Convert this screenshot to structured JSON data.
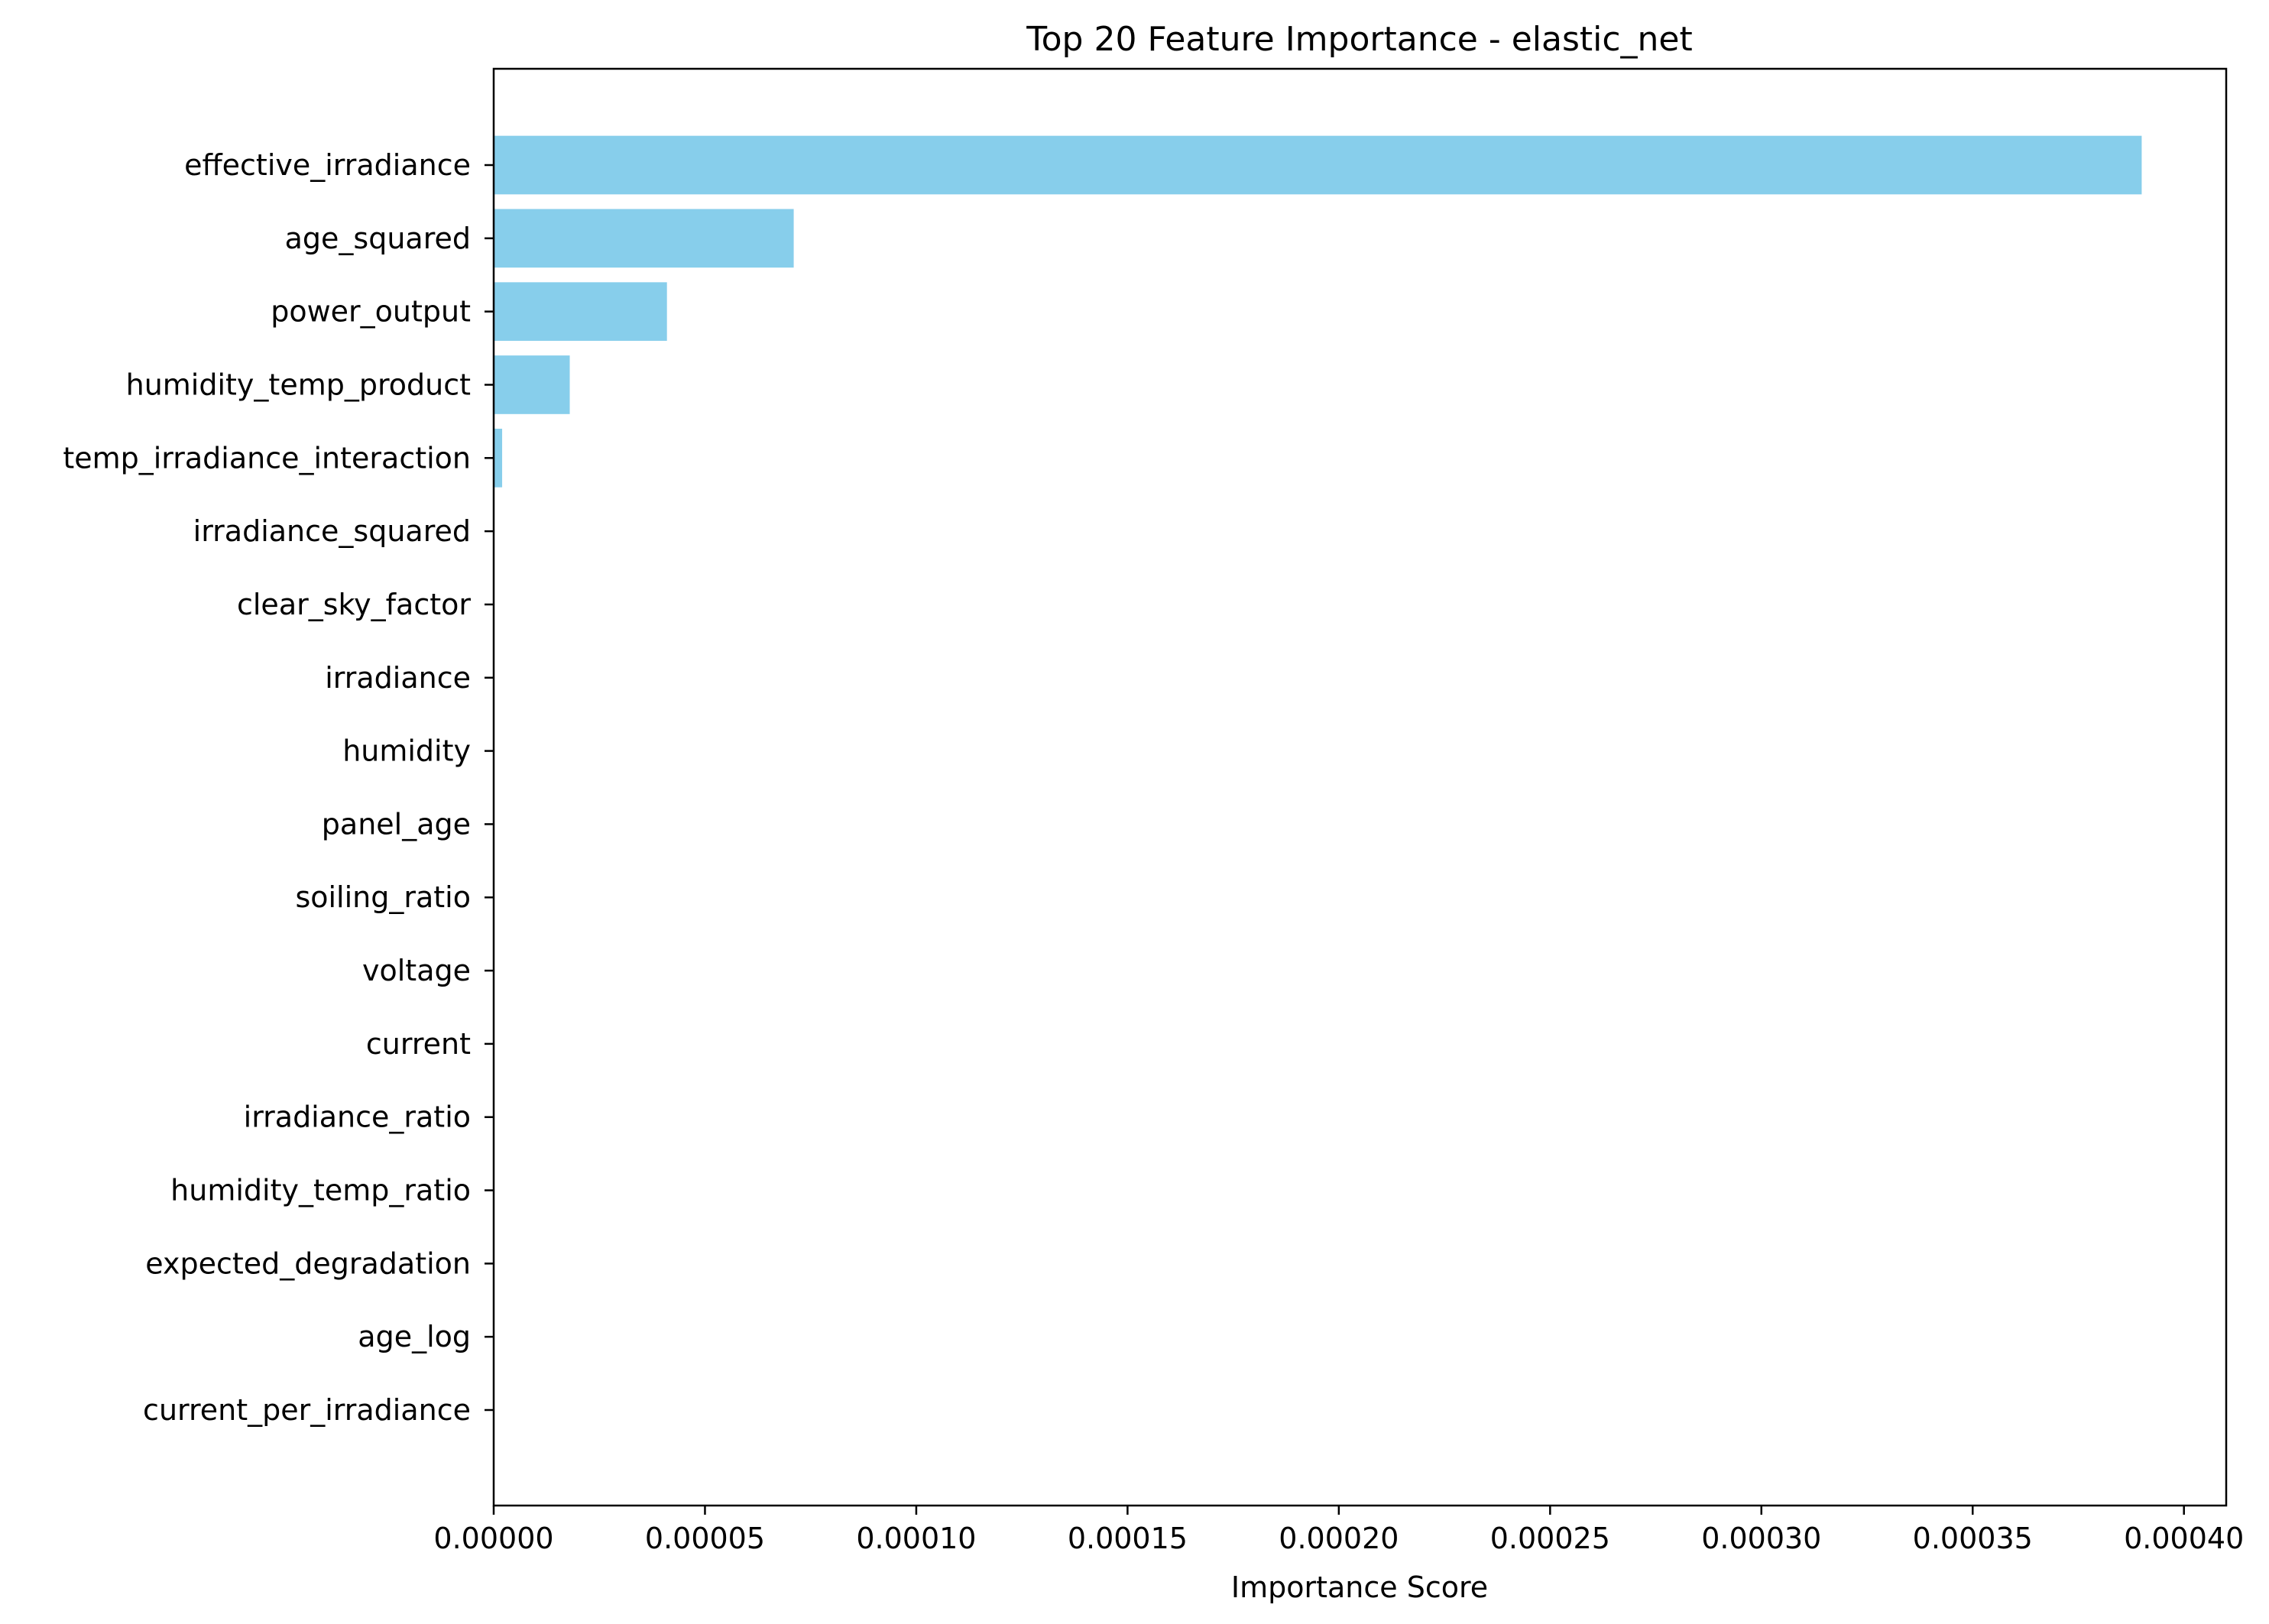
{
  "chart_data": {
    "type": "bar",
    "orientation": "horizontal",
    "title": "Top 20 Feature Importance - elastic_net",
    "xlabel": "Importance Score",
    "ylabel": "",
    "xlim": [
      0,
      0.00041
    ],
    "xticks": [
      "0.00000",
      "0.00005",
      "0.00010",
      "0.00015",
      "0.00020",
      "0.00025",
      "0.00030",
      "0.00035",
      "0.00040"
    ],
    "xtick_values": [
      0,
      5e-05,
      0.0001,
      0.00015,
      0.0002,
      0.00025,
      0.0003,
      0.00035,
      0.0004
    ],
    "grid": false,
    "bar_color": "#87ceeb",
    "categories": [
      "effective_irradiance",
      "age_squared",
      "power_output",
      "humidity_temp_product",
      "temp_irradiance_interaction",
      "irradiance_squared",
      "clear_sky_factor",
      "irradiance",
      "humidity",
      "panel_age",
      "soiling_ratio",
      "voltage",
      "current",
      "irradiance_ratio",
      "humidity_temp_ratio",
      "expected_degradation",
      "age_log",
      "current_per_irradiance"
    ],
    "values": [
      0.00039,
      7.1e-05,
      4.1e-05,
      1.8e-05,
      2e-06,
      0,
      0,
      0,
      0,
      0,
      0,
      0,
      0,
      0,
      0,
      0,
      0,
      0
    ]
  }
}
